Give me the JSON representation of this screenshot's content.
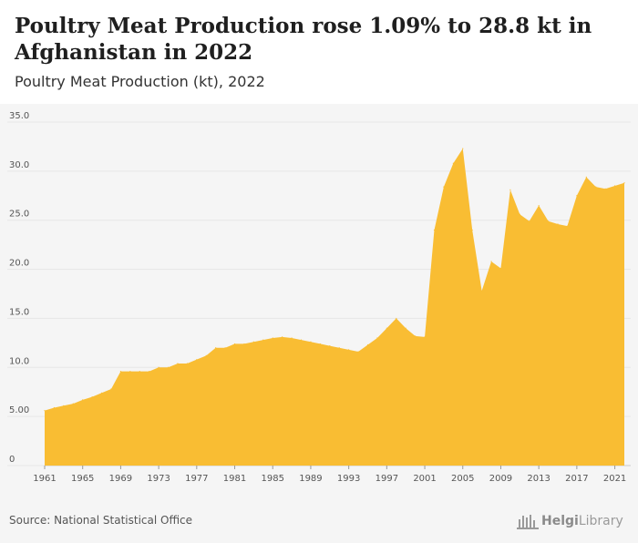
{
  "header": {
    "title": "Poultry Meat Production rose 1.09% to 28.8 kt in Afghanistan in 2022",
    "subtitle": "Poultry Meat Production (kt), 2022"
  },
  "footer": {
    "source": "Source: National Statistical Office",
    "logo_bold": "Helgi",
    "logo_rest": "Library"
  },
  "colors": {
    "area": "#f9bd33",
    "grid": "#e6e6e6",
    "background": "#f5f5f5"
  },
  "chart_data": {
    "type": "area",
    "title": "Poultry Meat Production (kt), 2022",
    "xlabel": "",
    "ylabel": "",
    "xlim": [
      1961,
      2022
    ],
    "ylim": [
      0,
      35
    ],
    "grid": true,
    "y_ticks": [
      "0",
      "5.00",
      "10.0",
      "15.0",
      "20.0",
      "25.0",
      "30.0",
      "35.0"
    ],
    "x_ticks": [
      "1961",
      "1965",
      "1969",
      "1973",
      "1977",
      "1981",
      "1985",
      "1989",
      "1993",
      "1997",
      "2001",
      "2005",
      "2009",
      "2013",
      "2017",
      "2021"
    ],
    "x": [
      1961,
      1962,
      1963,
      1964,
      1965,
      1966,
      1967,
      1968,
      1969,
      1970,
      1971,
      1972,
      1973,
      1974,
      1975,
      1976,
      1977,
      1978,
      1979,
      1980,
      1981,
      1982,
      1983,
      1984,
      1985,
      1986,
      1987,
      1988,
      1989,
      1990,
      1991,
      1992,
      1993,
      1994,
      1995,
      1996,
      1997,
      1998,
      1999,
      2000,
      2001,
      2002,
      2003,
      2004,
      2005,
      2006,
      2007,
      2008,
      2009,
      2010,
      2011,
      2012,
      2013,
      2014,
      2015,
      2016,
      2017,
      2018,
      2019,
      2020,
      2021,
      2022
    ],
    "values": [
      5.6,
      5.9,
      6.1,
      6.3,
      6.7,
      7.0,
      7.4,
      7.8,
      9.6,
      9.6,
      9.6,
      9.6,
      10.0,
      10.0,
      10.4,
      10.4,
      10.8,
      11.2,
      12.0,
      12.0,
      12.4,
      12.4,
      12.6,
      12.8,
      13.0,
      13.1,
      13.0,
      12.8,
      12.6,
      12.4,
      12.2,
      12.0,
      11.8,
      11.6,
      12.3,
      13.0,
      14.0,
      15.0,
      14.0,
      13.2,
      13.1,
      24.0,
      28.4,
      30.8,
      32.3,
      24.0,
      17.8,
      20.8,
      20.1,
      28.1,
      25.6,
      24.9,
      26.5,
      24.9,
      24.6,
      24.4,
      27.5,
      29.4,
      28.4,
      28.2,
      28.5,
      28.8
    ]
  }
}
